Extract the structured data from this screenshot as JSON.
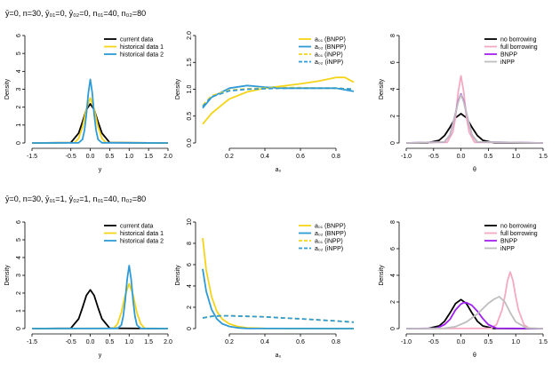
{
  "row_titles": [
    "ȳ=0, n=30, ȳ₀₁=0, ȳ₀₂=0, n₀₁=40, n₀₂=80",
    "ȳ=0, n=30, ȳ₀₁=1, ȳ₀₂=1, n₀₁=40, n₀₂=80"
  ],
  "colors": {
    "black": "#000000",
    "yellow": "#F5D417",
    "blue": "#2E9BD6",
    "pink": "#F4A9C4",
    "purple": "#A020F0",
    "gray": "#BEBEBE"
  },
  "chart_data": [
    {
      "panel": "row1-data",
      "type": "line",
      "xlabel": "y",
      "ylabel": "Density",
      "xlim": [
        -1.5,
        2.0
      ],
      "ylim": [
        0,
        6
      ],
      "xticks": [
        "-1.5",
        "-0.5",
        "0.0",
        "0.5",
        "1.0",
        "1.5",
        "2.0"
      ],
      "yticks": [
        "0",
        "1",
        "2",
        "3",
        "4",
        "5",
        "6"
      ],
      "series": [
        {
          "name": "current data",
          "color": "black",
          "dash": false,
          "x": [
            -1.5,
            -0.5,
            -0.3,
            -0.2,
            -0.1,
            0,
            0.1,
            0.2,
            0.3,
            0.5,
            2.0
          ],
          "values": [
            0,
            0.02,
            0.55,
            1.18,
            1.87,
            2.18,
            1.87,
            1.18,
            0.55,
            0.02,
            0
          ]
        },
        {
          "name": "historical data 1",
          "color": "yellow",
          "dash": false,
          "x": [
            -1.5,
            -0.4,
            -0.3,
            -0.2,
            -0.1,
            0,
            0.1,
            0.2,
            0.3,
            0.4,
            2.0
          ],
          "values": [
            0,
            0.02,
            0.26,
            0.9,
            1.9,
            2.52,
            1.9,
            0.9,
            0.26,
            0.02,
            0
          ]
        },
        {
          "name": "historical data 2",
          "color": "blue",
          "dash": false,
          "x": [
            -1.5,
            -0.3,
            -0.2,
            -0.15,
            -0.1,
            -0.05,
            0,
            0.05,
            0.1,
            0.15,
            0.2,
            0.3,
            2.0
          ],
          "values": [
            0,
            0.01,
            0.2,
            0.7,
            1.6,
            2.8,
            3.55,
            2.8,
            1.6,
            0.7,
            0.2,
            0.01,
            0
          ]
        }
      ]
    },
    {
      "panel": "row1-power",
      "type": "line",
      "xlabel": "a₀",
      "ylabel": "Density",
      "xlim": [
        0.05,
        0.9
      ],
      "ylim": [
        0,
        2.0
      ],
      "xticks": [
        "0.2",
        "0.4",
        "0.6",
        "0.8"
      ],
      "yticks": [
        "0.0",
        "0.5",
        "1.0",
        "1.5",
        "2.0"
      ],
      "series": [
        {
          "name": "a₀₁ (BNPP)",
          "color": "yellow",
          "dash": false,
          "x": [
            0.05,
            0.1,
            0.2,
            0.3,
            0.4,
            0.5,
            0.6,
            0.7,
            0.8,
            0.85,
            0.9
          ],
          "values": [
            0.35,
            0.55,
            0.82,
            0.95,
            1.02,
            1.06,
            1.1,
            1.15,
            1.22,
            1.22,
            1.13
          ]
        },
        {
          "name": "a₀₂ (BNPP)",
          "color": "blue",
          "dash": false,
          "x": [
            0.05,
            0.1,
            0.2,
            0.3,
            0.4,
            0.5,
            0.6,
            0.7,
            0.8,
            0.9
          ],
          "values": [
            0.65,
            0.85,
            1.02,
            1.07,
            1.04,
            1.02,
            1.02,
            1.02,
            1.02,
            0.96
          ]
        },
        {
          "name": "a₀₁ (iNPP)",
          "color": "yellow",
          "dash": true,
          "x": [
            0.05,
            0.1,
            0.2,
            0.3,
            0.4,
            0.5,
            0.6,
            0.7,
            0.8,
            0.9
          ],
          "values": [
            0.7,
            0.88,
            0.98,
            1.01,
            1.02,
            1.03,
            1.03,
            1.02,
            1.02,
            1.0
          ]
        },
        {
          "name": "a₀₂ (iNPP)",
          "color": "blue",
          "dash": true,
          "x": [
            0.05,
            0.1,
            0.2,
            0.3,
            0.4,
            0.5,
            0.6,
            0.7,
            0.8,
            0.9
          ],
          "values": [
            0.68,
            0.86,
            0.97,
            1.0,
            1.01,
            1.02,
            1.02,
            1.02,
            1.02,
            1.0
          ]
        }
      ]
    },
    {
      "panel": "row1-theta",
      "type": "line",
      "xlabel": "θ",
      "ylabel": "Density",
      "xlim": [
        -1.0,
        1.5
      ],
      "ylim": [
        0,
        8
      ],
      "xticks": [
        "-1.0",
        "-0.5",
        "0.0",
        "0.5",
        "1.0",
        "1.5"
      ],
      "yticks": [
        "0",
        "2",
        "4",
        "6",
        "8"
      ],
      "series": [
        {
          "name": "no borrowing",
          "color": "black",
          "dash": false,
          "x": [
            -1.0,
            -0.6,
            -0.4,
            -0.3,
            -0.2,
            -0.1,
            0,
            0.1,
            0.2,
            0.3,
            0.4,
            0.6,
            1.5
          ],
          "values": [
            0,
            0.01,
            0.2,
            0.55,
            1.18,
            1.87,
            2.18,
            1.87,
            1.18,
            0.55,
            0.2,
            0.01,
            0
          ]
        },
        {
          "name": "full borrowing",
          "color": "pink",
          "dash": false,
          "x": [
            -1.0,
            -0.25,
            -0.15,
            -0.1,
            -0.05,
            0,
            0.05,
            0.1,
            0.15,
            0.25,
            1.5
          ],
          "values": [
            0,
            0.05,
            0.8,
            1.9,
            3.8,
            5.0,
            3.8,
            1.9,
            0.8,
            0.05,
            0
          ]
        },
        {
          "name": "BNPP",
          "color": "purple",
          "dash": false,
          "x": [
            -1.0,
            -0.3,
            -0.2,
            -0.1,
            -0.05,
            0,
            0.05,
            0.1,
            0.2,
            0.3,
            1.5
          ],
          "values": [
            0,
            0.08,
            0.6,
            2.2,
            3.1,
            3.65,
            3.1,
            2.2,
            0.6,
            0.08,
            0
          ]
        },
        {
          "name": "iNPP",
          "color": "gray",
          "dash": false,
          "x": [
            -1.0,
            -0.3,
            -0.2,
            -0.1,
            -0.05,
            0,
            0.05,
            0.1,
            0.2,
            0.3,
            1.5
          ],
          "values": [
            0,
            0.08,
            0.6,
            2.2,
            3.05,
            3.6,
            3.05,
            2.2,
            0.6,
            0.08,
            0
          ]
        }
      ]
    },
    {
      "panel": "row2-data",
      "type": "line",
      "xlabel": "y",
      "ylabel": "Density",
      "xlim": [
        -1.5,
        2.0
      ],
      "ylim": [
        0,
        6
      ],
      "xticks": [
        "-1.5",
        "-0.5",
        "0.0",
        "0.5",
        "1.0",
        "1.5",
        "2.0"
      ],
      "yticks": [
        "0",
        "1",
        "2",
        "3",
        "4",
        "5",
        "6"
      ],
      "series": [
        {
          "name": "current data",
          "color": "black",
          "dash": false,
          "x": [
            -1.5,
            -0.5,
            -0.3,
            -0.2,
            -0.1,
            0,
            0.1,
            0.2,
            0.3,
            0.5,
            2.0
          ],
          "values": [
            0,
            0.02,
            0.55,
            1.18,
            1.87,
            2.18,
            1.87,
            1.18,
            0.55,
            0.02,
            0
          ]
        },
        {
          "name": "historical data 1",
          "color": "yellow",
          "dash": false,
          "x": [
            -1.5,
            0.6,
            0.7,
            0.8,
            0.9,
            1.0,
            1.1,
            1.2,
            1.3,
            1.4,
            2.0
          ],
          "values": [
            0,
            0.02,
            0.26,
            0.9,
            1.9,
            2.52,
            1.9,
            0.9,
            0.26,
            0.02,
            0
          ]
        },
        {
          "name": "historical data 2",
          "color": "blue",
          "dash": false,
          "x": [
            -1.5,
            0.7,
            0.8,
            0.85,
            0.9,
            0.95,
            1.0,
            1.05,
            1.1,
            1.15,
            1.2,
            1.3,
            2.0
          ],
          "values": [
            0,
            0.01,
            0.2,
            0.7,
            1.6,
            2.8,
            3.55,
            2.8,
            1.6,
            0.7,
            0.2,
            0.01,
            0
          ]
        }
      ]
    },
    {
      "panel": "row2-power",
      "type": "line",
      "xlabel": "a₀",
      "ylabel": "Density",
      "xlim": [
        0.05,
        0.9
      ],
      "ylim": [
        0,
        10
      ],
      "xticks": [
        "0.2",
        "0.4",
        "0.6",
        "0.8"
      ],
      "yticks": [
        "0",
        "2",
        "4",
        "6",
        "8",
        "10"
      ],
      "series": [
        {
          "name": "a₀₁ (BNPP)",
          "color": "yellow",
          "dash": false,
          "x": [
            0.05,
            0.07,
            0.1,
            0.13,
            0.16,
            0.2,
            0.25,
            0.3,
            0.4,
            0.9
          ],
          "values": [
            8.5,
            5.5,
            3.0,
            1.6,
            0.9,
            0.45,
            0.18,
            0.07,
            0.02,
            0
          ]
        },
        {
          "name": "a₀₂ (BNPP)",
          "color": "blue",
          "dash": false,
          "x": [
            0.05,
            0.07,
            0.1,
            0.13,
            0.16,
            0.2,
            0.25,
            0.3,
            0.4,
            0.9
          ],
          "values": [
            5.6,
            3.5,
            1.8,
            0.9,
            0.45,
            0.2,
            0.07,
            0.02,
            0.01,
            0
          ]
        },
        {
          "name": "a₀₁ (iNPP)",
          "color": "yellow",
          "dash": true,
          "x": [
            0.05,
            0.1,
            0.15,
            0.2,
            0.3,
            0.4,
            0.5,
            0.6,
            0.7,
            0.8,
            0.9
          ],
          "values": [
            1.0,
            1.15,
            1.2,
            1.2,
            1.15,
            1.1,
            1.0,
            0.92,
            0.82,
            0.72,
            0.6
          ]
        },
        {
          "name": "a₀₂ (iNPP)",
          "color": "blue",
          "dash": true,
          "x": [
            0.05,
            0.1,
            0.15,
            0.2,
            0.3,
            0.4,
            0.5,
            0.6,
            0.7,
            0.8,
            0.9
          ],
          "values": [
            1.0,
            1.15,
            1.2,
            1.2,
            1.15,
            1.1,
            1.0,
            0.92,
            0.82,
            0.72,
            0.6
          ]
        }
      ]
    },
    {
      "panel": "row2-theta",
      "type": "line",
      "xlabel": "θ",
      "ylabel": "Density",
      "xlim": [
        -1.0,
        1.5
      ],
      "ylim": [
        0,
        8
      ],
      "xticks": [
        "-1.0",
        "-0.5",
        "0.0",
        "0.5",
        "1.0",
        "1.5"
      ],
      "yticks": [
        "0",
        "2",
        "4",
        "6",
        "8"
      ],
      "series": [
        {
          "name": "no borrowing",
          "color": "black",
          "dash": false,
          "x": [
            -1.0,
            -0.6,
            -0.4,
            -0.3,
            -0.2,
            -0.1,
            0,
            0.1,
            0.2,
            0.3,
            0.4,
            0.6,
            1.5
          ],
          "values": [
            0,
            0.01,
            0.2,
            0.55,
            1.18,
            1.87,
            2.18,
            1.87,
            1.18,
            0.55,
            0.2,
            0.01,
            0
          ]
        },
        {
          "name": "full borrowing",
          "color": "pink",
          "dash": false,
          "x": [
            -1.0,
            0.55,
            0.65,
            0.75,
            0.8,
            0.85,
            0.9,
            0.95,
            1.0,
            1.05,
            1.15,
            1.25,
            1.5
          ],
          "values": [
            0,
            0.02,
            0.3,
            1.4,
            2.4,
            3.6,
            4.25,
            3.6,
            2.4,
            1.4,
            0.3,
            0.02,
            0
          ]
        },
        {
          "name": "BNPP",
          "color": "purple",
          "dash": false,
          "x": [
            -1.0,
            -0.45,
            -0.3,
            -0.2,
            -0.1,
            0,
            0.05,
            0.1,
            0.2,
            0.3,
            0.4,
            0.5,
            0.65,
            1.5
          ],
          "values": [
            0,
            0.02,
            0.3,
            0.7,
            1.4,
            1.85,
            1.95,
            1.95,
            1.75,
            1.3,
            0.75,
            0.3,
            0.03,
            0
          ]
        },
        {
          "name": "iNPP",
          "color": "gray",
          "dash": false,
          "x": [
            -1.0,
            -0.3,
            -0.1,
            0.1,
            0.3,
            0.5,
            0.6,
            0.7,
            0.8,
            0.9,
            1.0,
            1.2,
            1.5
          ],
          "values": [
            0,
            0.02,
            0.15,
            0.5,
            1.1,
            1.9,
            2.2,
            2.4,
            2.0,
            1.2,
            0.5,
            0.05,
            0
          ]
        }
      ]
    }
  ]
}
